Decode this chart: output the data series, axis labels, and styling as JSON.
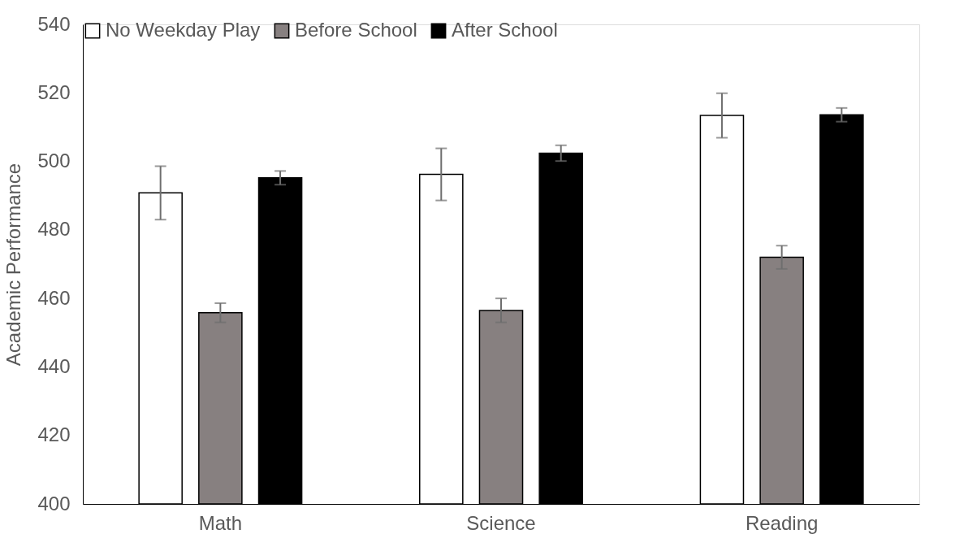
{
  "chart_data": {
    "type": "bar",
    "ylabel": "Academic Performance",
    "categories": [
      "Math",
      "Science",
      "Reading"
    ],
    "series": [
      {
        "name": "No Weekday Play",
        "color": "#ffffff",
        "values": [
          490.8,
          496.2,
          513.4
        ],
        "errors": [
          7.8,
          7.6,
          6.5
        ]
      },
      {
        "name": "Before School",
        "color": "#878080",
        "values": [
          455.8,
          456.5,
          472.0
        ],
        "errors": [
          2.8,
          3.5,
          3.4
        ]
      },
      {
        "name": "After School",
        "color": "#000000",
        "values": [
          495.2,
          502.4,
          513.6
        ],
        "errors": [
          2.0,
          2.3,
          2.0
        ]
      }
    ],
    "ylim": [
      400,
      540
    ],
    "yticks": [
      400,
      420,
      440,
      460,
      480,
      500,
      520,
      540
    ],
    "grid": false,
    "legend": "top"
  }
}
